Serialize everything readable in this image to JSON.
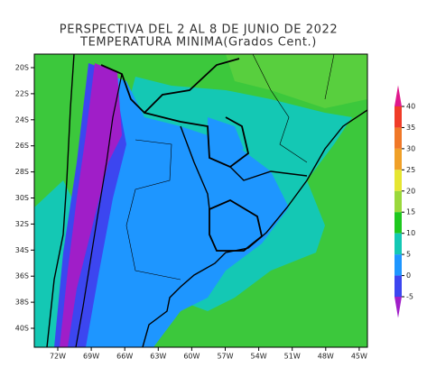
{
  "title": [
    "PERSPECTIVA DEL 2 AL 8 DE JUNIO DE 2022",
    "TEMPERATURA MINIMA(Grados Cent.)"
  ],
  "map": {
    "lon_ticks": [
      "72W",
      "69W",
      "66W",
      "63W",
      "60W",
      "57W",
      "54W",
      "51W",
      "48W",
      "45W"
    ],
    "lat_ticks": [
      "20S",
      "22S",
      "24S",
      "26S",
      "28S",
      "30S",
      "32S",
      "34S",
      "36S",
      "38S",
      "40S"
    ]
  },
  "colorbar": {
    "ticks": [
      40,
      35,
      30,
      25,
      20,
      15,
      10,
      5,
      0,
      -5
    ],
    "colors": [
      "#e0188c",
      "#f03c28",
      "#f07828",
      "#f0a028",
      "#e6e632",
      "#9ad83c",
      "#1ec81e",
      "#14c8b4",
      "#1e96ff",
      "#3c46f0",
      "#a01ec8"
    ]
  }
}
